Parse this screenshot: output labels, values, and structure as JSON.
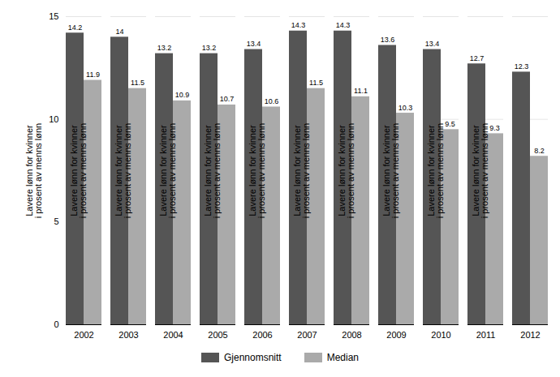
{
  "chart_data": {
    "type": "bar",
    "categories": [
      "2002",
      "2003",
      "2004",
      "2005",
      "2006",
      "2007",
      "2008",
      "2009",
      "2010",
      "2011",
      "2012"
    ],
    "series": [
      {
        "name": "Gjennomsnitt",
        "color": "#555555",
        "values": [
          14.2,
          14.0,
          13.2,
          13.2,
          13.4,
          14.3,
          14.3,
          13.6,
          13.4,
          12.7,
          12.3
        ]
      },
      {
        "name": "Median",
        "color": "#aaaaaa",
        "values": [
          11.9,
          11.5,
          10.9,
          10.7,
          10.6,
          11.5,
          11.1,
          10.3,
          9.5,
          9.3,
          8.2
        ]
      }
    ],
    "ylabel": "Lavere lønn for kvinner\ni prosent av menns lønn",
    "ylim": [
      0,
      15
    ],
    "yticks": [
      0,
      5,
      10,
      15
    ],
    "grid": true,
    "data_labels": true,
    "legend": "bottom"
  }
}
